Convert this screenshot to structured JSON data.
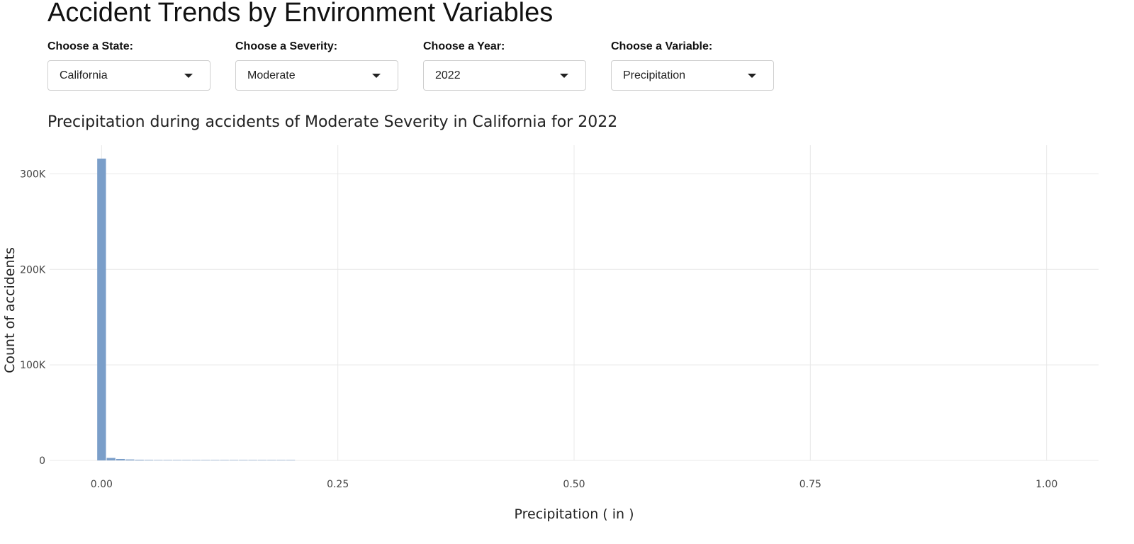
{
  "page": {
    "title": "Accident Trends by Environment Variables"
  },
  "filters": [
    {
      "label": "Choose a State:",
      "value": "California"
    },
    {
      "label": "Choose a Severity:",
      "value": "Moderate"
    },
    {
      "label": "Choose a Year:",
      "value": "2022"
    },
    {
      "label": "Choose a Variable:",
      "value": "Precipitation"
    }
  ],
  "chart_data": {
    "type": "bar",
    "subtype": "histogram",
    "title": "Precipitation during accidents of Moderate Severity in California for 2022",
    "xlabel": "Precipitation ( in )",
    "ylabel": "Count of accidents",
    "xlim": [
      -0.055,
      1.055
    ],
    "ylim": [
      0,
      330000
    ],
    "xticks": [
      0,
      0.25,
      0.5,
      0.75,
      1
    ],
    "xtick_labels": [
      "0.00",
      "0.25",
      "0.50",
      "0.75",
      "1.00"
    ],
    "yticks": [
      0,
      100000,
      200000,
      300000
    ],
    "ytick_labels": [
      "0",
      "100K",
      "200K",
      "300K"
    ],
    "grid": true,
    "bar_color": "#7a9ec9",
    "bins": [
      {
        "x0": -0.005,
        "x1": 0.005,
        "count": 316000
      },
      {
        "x0": 0.005,
        "x1": 0.015,
        "count": 2600
      },
      {
        "x0": 0.015,
        "x1": 0.025,
        "count": 1500
      },
      {
        "x0": 0.025,
        "x1": 0.035,
        "count": 1000
      },
      {
        "x0": 0.035,
        "x1": 0.045,
        "count": 700
      },
      {
        "x0": 0.045,
        "x1": 0.055,
        "count": 550
      },
      {
        "x0": 0.055,
        "x1": 0.065,
        "count": 420
      },
      {
        "x0": 0.065,
        "x1": 0.075,
        "count": 330
      },
      {
        "x0": 0.075,
        "x1": 0.085,
        "count": 270
      },
      {
        "x0": 0.085,
        "x1": 0.095,
        "count": 220
      },
      {
        "x0": 0.095,
        "x1": 0.105,
        "count": 180
      },
      {
        "x0": 0.105,
        "x1": 0.115,
        "count": 140
      },
      {
        "x0": 0.115,
        "x1": 0.125,
        "count": 110
      },
      {
        "x0": 0.125,
        "x1": 0.135,
        "count": 90
      },
      {
        "x0": 0.135,
        "x1": 0.145,
        "count": 75
      },
      {
        "x0": 0.145,
        "x1": 0.155,
        "count": 60
      },
      {
        "x0": 0.155,
        "x1": 0.165,
        "count": 50
      },
      {
        "x0": 0.165,
        "x1": 0.175,
        "count": 40
      },
      {
        "x0": 0.175,
        "x1": 0.185,
        "count": 35
      },
      {
        "x0": 0.185,
        "x1": 0.195,
        "count": 30
      },
      {
        "x0": 0.195,
        "x1": 0.205,
        "count": 25
      }
    ]
  }
}
